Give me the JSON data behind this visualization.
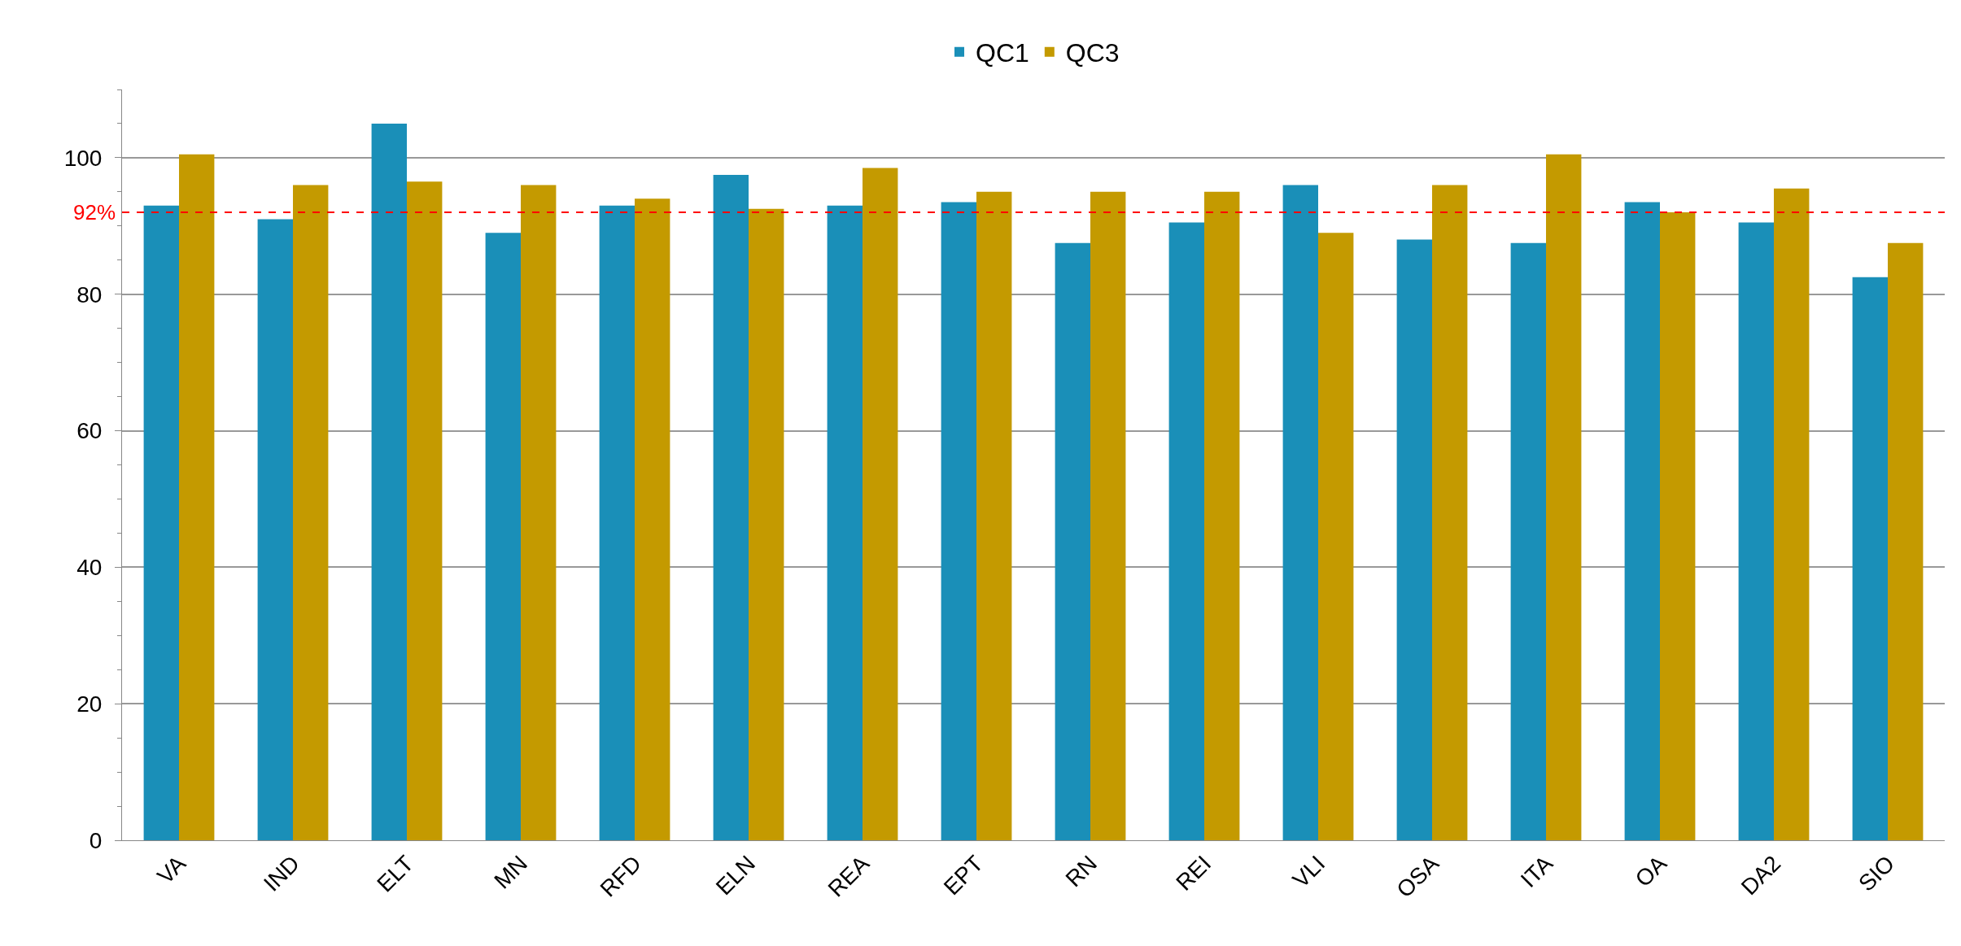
{
  "chart_data": {
    "type": "bar",
    "categories": [
      "VA",
      "IND",
      "ELT",
      "MN",
      "RFD",
      "ELN",
      "REA",
      "EPT",
      "RN",
      "REI",
      "VLI",
      "OSA",
      "ITA",
      "OA",
      "DA2",
      "SIO"
    ],
    "series": [
      {
        "name": "QC1",
        "color": "#1a8fb8",
        "values": [
          93,
          91,
          105,
          89,
          93,
          97.5,
          93,
          93.5,
          87.5,
          90.5,
          96,
          88,
          87.5,
          93.5,
          90.5,
          82.5
        ]
      },
      {
        "name": "QC3",
        "color": "#c49a00",
        "values": [
          100.5,
          96,
          96.5,
          96,
          94,
          92.5,
          98.5,
          95,
          95,
          95,
          89,
          96,
          100.5,
          92,
          95.5,
          87.5
        ]
      }
    ],
    "ylim": [
      0,
      110
    ],
    "yticks": [
      0,
      20,
      40,
      60,
      80,
      100
    ],
    "grid": "y",
    "legend": "top",
    "ref_lines": [
      {
        "axis": "y",
        "value": 92,
        "label": "92%",
        "color": "#ff0000",
        "line_style": "dashed"
      }
    ]
  }
}
